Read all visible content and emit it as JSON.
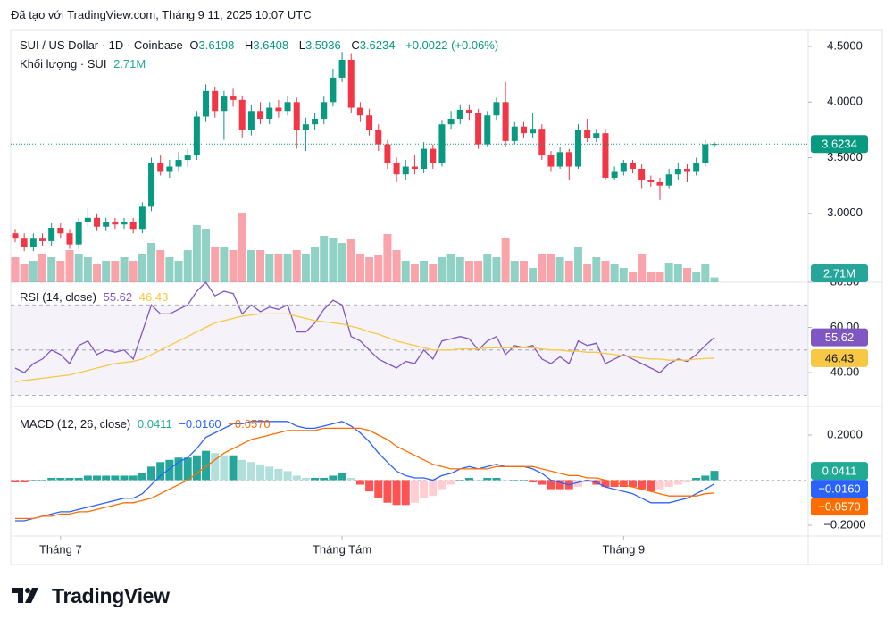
{
  "header": {
    "created": "Đã tạo với TradingView.com, Tháng 9 11, 2025 10:07 UTC"
  },
  "logo": "TradingView",
  "chart_data": [
    {
      "type": "candlestick",
      "title": "SUI / US Dollar · 1D · Coinbase",
      "ohlc_letters": [
        "O",
        "H",
        "L",
        "C"
      ],
      "change": "+0.0022 (+0.06%)",
      "color_up": "#089981",
      "color_down": "#f23645",
      "ylim": [
        2.38,
        4.645
      ],
      "yticks": [
        {
          "value": 4.5,
          "label": "4.5000"
        },
        {
          "value": 4.0,
          "label": "4.0000"
        },
        {
          "value": 3.5,
          "label": "3.5000"
        },
        {
          "value": 3.0,
          "label": "3.0000"
        }
      ],
      "xticks": [
        {
          "value": 5,
          "label": "Tháng 7"
        },
        {
          "value": 36,
          "label": "Tháng Tám"
        },
        {
          "value": 67,
          "label": "Tháng 9"
        }
      ],
      "price_line": true,
      "open": [
        2.82,
        2.78,
        2.7,
        2.78,
        2.75,
        2.87,
        2.82,
        2.72,
        2.92,
        2.96,
        2.88,
        2.92,
        2.9,
        2.92,
        2.86,
        3.06,
        3.45,
        3.38,
        3.42,
        3.48,
        3.52,
        3.87,
        4.1,
        3.92,
        4.05,
        4.02,
        3.75,
        3.92,
        3.85,
        3.95,
        3.92,
        4.0,
        3.75,
        3.8,
        3.85,
        4.0,
        4.22,
        4.38,
        3.95,
        3.88,
        3.75,
        3.62,
        3.45,
        3.35,
        3.42,
        3.4,
        3.58,
        3.45,
        3.8,
        3.85,
        3.93,
        3.9,
        3.62,
        3.88,
        4.0,
        3.65,
        3.78,
        3.72,
        3.76,
        3.52,
        3.42,
        3.55,
        3.42,
        3.75,
        3.68,
        3.72,
        3.32,
        3.38,
        3.45,
        3.4,
        3.3,
        3.28,
        3.25,
        3.35,
        3.4,
        3.38,
        3.45,
        3.6198
      ],
      "high": [
        2.86,
        2.82,
        2.82,
        2.82,
        2.91,
        2.91,
        2.86,
        2.96,
        3.05,
        3.0,
        2.96,
        2.96,
        2.96,
        2.96,
        3.1,
        3.5,
        3.52,
        3.48,
        3.55,
        3.58,
        3.92,
        4.16,
        4.14,
        4.1,
        4.12,
        4.06,
        3.98,
        4.0,
        4.0,
        4.02,
        4.05,
        4.04,
        3.86,
        3.9,
        4.05,
        4.3,
        4.45,
        4.44,
        4.0,
        3.94,
        3.8,
        3.66,
        3.5,
        3.48,
        3.52,
        3.64,
        3.62,
        3.84,
        3.92,
        3.98,
        3.98,
        3.94,
        3.92,
        4.04,
        4.18,
        3.82,
        3.82,
        3.9,
        3.8,
        3.56,
        3.6,
        3.58,
        3.8,
        3.85,
        3.76,
        3.76,
        3.42,
        3.48,
        3.48,
        3.44,
        3.34,
        3.32,
        3.4,
        3.45,
        3.44,
        3.5,
        3.66,
        3.6408
      ],
      "low": [
        2.74,
        2.66,
        2.66,
        2.71,
        2.71,
        2.78,
        2.68,
        2.68,
        2.88,
        2.84,
        2.84,
        2.86,
        2.86,
        2.82,
        2.82,
        3.02,
        3.34,
        3.32,
        3.38,
        3.42,
        3.48,
        3.82,
        3.86,
        3.66,
        3.96,
        3.68,
        3.7,
        3.8,
        3.8,
        3.86,
        3.88,
        3.58,
        3.56,
        3.75,
        3.8,
        3.96,
        4.18,
        3.9,
        3.82,
        3.7,
        3.56,
        3.4,
        3.28,
        3.3,
        3.35,
        3.36,
        3.4,
        3.42,
        3.76,
        3.8,
        3.84,
        3.58,
        3.6,
        3.84,
        3.6,
        3.62,
        3.68,
        3.68,
        3.48,
        3.38,
        3.4,
        3.3,
        3.4,
        3.64,
        3.64,
        3.3,
        3.3,
        3.34,
        3.36,
        3.22,
        3.24,
        3.12,
        3.22,
        3.3,
        3.28,
        3.34,
        3.42,
        3.5936
      ],
      "close": [
        2.78,
        2.7,
        2.78,
        2.75,
        2.87,
        2.82,
        2.72,
        2.92,
        2.96,
        2.88,
        2.92,
        2.9,
        2.92,
        2.86,
        3.06,
        3.45,
        3.38,
        3.42,
        3.48,
        3.52,
        3.87,
        4.1,
        3.92,
        4.05,
        4.02,
        3.75,
        3.92,
        3.85,
        3.95,
        3.92,
        4.0,
        3.75,
        3.8,
        3.85,
        4.0,
        4.22,
        4.38,
        3.95,
        3.88,
        3.75,
        3.62,
        3.45,
        3.35,
        3.42,
        3.4,
        3.58,
        3.45,
        3.8,
        3.85,
        3.93,
        3.9,
        3.62,
        3.88,
        4.0,
        3.65,
        3.78,
        3.72,
        3.76,
        3.52,
        3.42,
        3.55,
        3.42,
        3.75,
        3.68,
        3.72,
        3.32,
        3.38,
        3.45,
        3.4,
        3.3,
        3.28,
        3.25,
        3.35,
        3.4,
        3.38,
        3.45,
        3.6212,
        3.6234
      ]
    },
    {
      "type": "bar",
      "title": "Khối lượng · SUI",
      "ylim": [
        0,
        40
      ],
      "values": [
        14,
        10,
        12,
        16,
        14,
        12,
        18,
        16,
        14,
        10,
        12,
        12,
        14,
        12,
        16,
        22,
        18,
        14,
        12,
        18,
        32,
        30,
        20,
        20,
        18,
        39,
        18,
        18,
        16,
        16,
        16,
        18,
        16,
        20,
        26,
        25,
        22,
        24,
        16,
        14,
        15,
        27,
        18,
        12,
        10,
        12,
        10,
        14,
        16,
        14,
        12,
        12,
        16,
        14,
        25,
        12,
        12,
        8,
        16,
        16,
        14,
        12,
        20,
        10,
        14,
        12,
        10,
        8,
        6,
        16,
        6,
        6,
        11,
        10,
        8,
        6,
        10,
        2.71
      ],
      "value_labels": {
        "77": "2.71M"
      },
      "label_color": "#26a69a"
    },
    {
      "type": "line",
      "title": "RSI (14, close)",
      "ylim": [
        25,
        80
      ],
      "yticks": [
        {
          "value": 80,
          "label": "80.00"
        },
        {
          "value": 60,
          "label": "60.00"
        },
        {
          "value": 40,
          "label": "40.00"
        }
      ],
      "band": [
        30,
        70
      ],
      "levels": [
        70,
        50,
        30
      ],
      "series": [
        {
          "color": "#7e57c2",
          "values": [
            42,
            40,
            44,
            46,
            50,
            48,
            44,
            52,
            54,
            48,
            50,
            49,
            50,
            46,
            58,
            70,
            66,
            66,
            68,
            70,
            76,
            80,
            74,
            76,
            75,
            66,
            70,
            67,
            69,
            68,
            70,
            58,
            58,
            62,
            68,
            72,
            70,
            56,
            54,
            50,
            46,
            44,
            42,
            45,
            44,
            50,
            46,
            54,
            55,
            56,
            55,
            50,
            54,
            56,
            48,
            52,
            51,
            52,
            46,
            44,
            47,
            44,
            54,
            52,
            53,
            44,
            46,
            48,
            46,
            44,
            42,
            40,
            44,
            46,
            45,
            48,
            52,
            55.62
          ]
        },
        {
          "color": "#f7c844",
          "values": [
            36,
            36.5,
            37,
            37.5,
            38,
            38.5,
            39,
            40,
            41,
            42,
            43,
            44,
            44.5,
            45,
            46,
            48,
            50,
            52,
            54,
            56,
            58,
            60,
            62,
            63,
            64,
            65,
            65.5,
            66,
            66,
            66,
            66,
            65,
            64,
            63,
            62.5,
            62,
            61.5,
            60.5,
            59.5,
            58,
            57,
            55.5,
            54,
            53,
            52,
            51,
            50,
            50,
            50,
            50.5,
            50.5,
            50.5,
            51,
            51,
            51,
            51,
            51,
            51,
            50.5,
            50,
            50,
            49.5,
            49.5,
            49,
            49,
            48.5,
            48,
            47.5,
            47,
            46.5,
            46,
            46,
            45.5,
            45.5,
            45.5,
            46,
            46.2,
            46.43
          ]
        }
      ]
    },
    {
      "type": "macd",
      "title": "MACD (12, 26, close)",
      "ylim": [
        -0.2475,
        0.3267
      ],
      "yticks": [
        {
          "value": 0.2,
          "label": "0.2000"
        },
        {
          "value": -0.2,
          "label": "−0.2000"
        }
      ],
      "zero_line": true,
      "histogram_colors": {
        "up_grow": "#26a69a",
        "up_fall": "#b2dfdb",
        "down_fall": "#ff5252",
        "down_grow": "#ffcdd2"
      },
      "series": [
        {
          "type": "histogram",
          "color": "#22ab94",
          "values": [
            -0.01,
            -0.01,
            0,
            0,
            0.01,
            0.01,
            0.01,
            0.01,
            0.02,
            0.02,
            0.02,
            0.02,
            0.02,
            0.02,
            0.03,
            0.06,
            0.08,
            0.09,
            0.1,
            0.1,
            0.11,
            0.13,
            0.12,
            0.11,
            0.11,
            0.09,
            0.08,
            0.07,
            0.06,
            0.05,
            0.04,
            0.02,
            0.01,
            0.01,
            0.01,
            0.02,
            0.03,
            0.01,
            -0.02,
            -0.05,
            -0.08,
            -0.1,
            -0.11,
            -0.11,
            -0.1,
            -0.08,
            -0.07,
            -0.04,
            -0.02,
            0,
            0.01,
            0,
            0.01,
            0.01,
            0,
            0,
            0,
            -0.01,
            -0.02,
            -0.04,
            -0.04,
            -0.04,
            -0.03,
            -0.01,
            -0.02,
            -0.03,
            -0.03,
            -0.03,
            -0.03,
            -0.04,
            -0.05,
            -0.04,
            -0.03,
            -0.02,
            -0.01,
            0.01,
            0.02,
            0.0411
          ]
        },
        {
          "type": "line",
          "color": "#2962ff",
          "values": [
            -0.18,
            -0.18,
            -0.17,
            -0.16,
            -0.15,
            -0.14,
            -0.14,
            -0.13,
            -0.12,
            -0.11,
            -0.1,
            -0.09,
            -0.08,
            -0.08,
            -0.06,
            -0.02,
            0.02,
            0.05,
            0.08,
            0.1,
            0.14,
            0.19,
            0.21,
            0.23,
            0.25,
            0.25,
            0.26,
            0.26,
            0.26,
            0.26,
            0.26,
            0.24,
            0.23,
            0.23,
            0.24,
            0.25,
            0.26,
            0.24,
            0.21,
            0.17,
            0.12,
            0.08,
            0.04,
            0.02,
            0.01,
            0.01,
            0,
            0.02,
            0.03,
            0.05,
            0.06,
            0.05,
            0.06,
            0.07,
            0.06,
            0.06,
            0.06,
            0.05,
            0.03,
            0,
            -0.01,
            -0.02,
            -0.01,
            0,
            -0.01,
            -0.03,
            -0.04,
            -0.05,
            -0.06,
            -0.08,
            -0.1,
            -0.1,
            -0.1,
            -0.09,
            -0.08,
            -0.06,
            -0.04,
            -0.016
          ],
          "value_labels": {
            "77": "−0.0160"
          }
        },
        {
          "type": "line",
          "color": "#ff6d00",
          "values": [
            -0.17,
            -0.17,
            -0.17,
            -0.16,
            -0.16,
            -0.15,
            -0.15,
            -0.14,
            -0.14,
            -0.13,
            -0.12,
            -0.11,
            -0.1,
            -0.1,
            -0.09,
            -0.08,
            -0.06,
            -0.04,
            -0.02,
            0,
            0.03,
            0.06,
            0.09,
            0.12,
            0.14,
            0.16,
            0.18,
            0.19,
            0.2,
            0.21,
            0.22,
            0.22,
            0.22,
            0.22,
            0.23,
            0.23,
            0.23,
            0.23,
            0.23,
            0.22,
            0.2,
            0.18,
            0.15,
            0.13,
            0.11,
            0.09,
            0.07,
            0.06,
            0.05,
            0.05,
            0.05,
            0.05,
            0.05,
            0.06,
            0.06,
            0.06,
            0.06,
            0.06,
            0.05,
            0.04,
            0.03,
            0.02,
            0.02,
            0.01,
            0.01,
            0,
            -0.01,
            -0.02,
            -0.03,
            -0.04,
            -0.05,
            -0.06,
            -0.07,
            -0.07,
            -0.07,
            -0.07,
            -0.06,
            -0.057
          ],
          "value_labels": {
            "77": "−0.0570"
          }
        }
      ]
    }
  ]
}
